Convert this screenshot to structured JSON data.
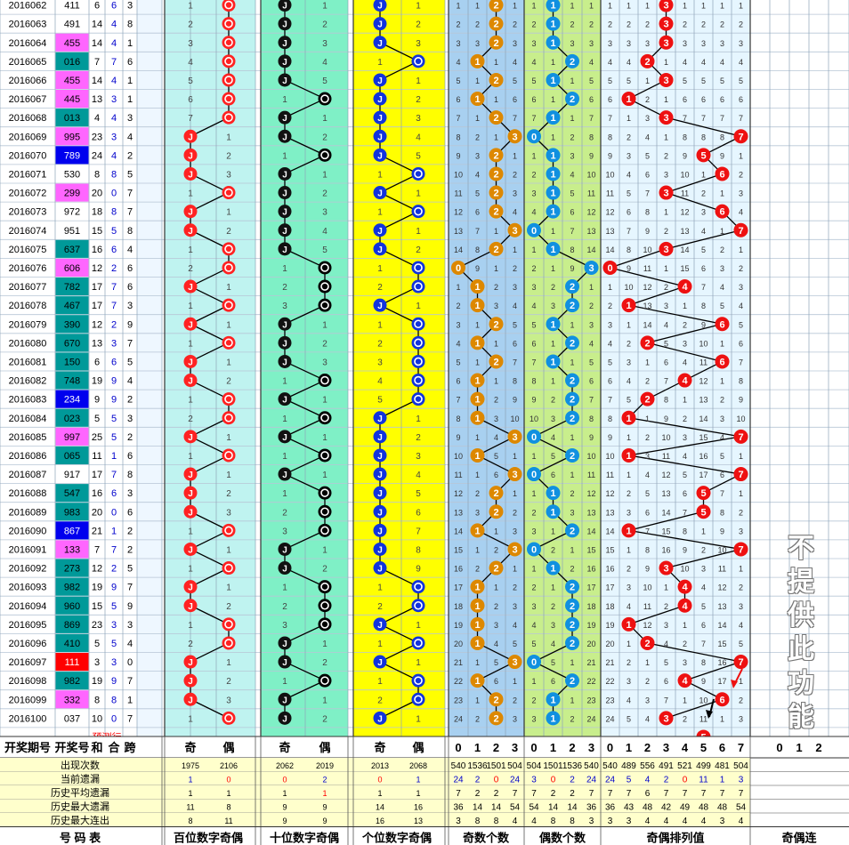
{
  "rows": [
    {
      "p": "2016062",
      "n": "411",
      "s": 6,
      "k": 6,
      "d": 3,
      "bg": "#ffffff"
    },
    {
      "p": "2016063",
      "n": "491",
      "s": 14,
      "k": 4,
      "d": 8,
      "bg": "#ffffff"
    },
    {
      "p": "2016064",
      "n": "455",
      "s": 14,
      "k": 4,
      "d": 1,
      "bg": "#ff66ff"
    },
    {
      "p": "2016065",
      "n": "016",
      "s": 7,
      "k": 7,
      "d": 6,
      "bg": "#009999"
    },
    {
      "p": "2016066",
      "n": "455",
      "s": 14,
      "k": 4,
      "d": 1,
      "bg": "#ff66ff"
    },
    {
      "p": "2016067",
      "n": "445",
      "s": 13,
      "k": 3,
      "d": 1,
      "bg": "#ff66ff"
    },
    {
      "p": "2016068",
      "n": "013",
      "s": 4,
      "k": 4,
      "d": 3,
      "bg": "#009999"
    },
    {
      "p": "2016069",
      "n": "995",
      "s": 23,
      "k": 3,
      "d": 4,
      "bg": "#ff66ff"
    },
    {
      "p": "2016070",
      "n": "789",
      "s": 24,
      "k": 4,
      "d": 2,
      "bg": "#0000ee"
    },
    {
      "p": "2016071",
      "n": "530",
      "s": 8,
      "k": 8,
      "d": 5,
      "bg": "#ffffff"
    },
    {
      "p": "2016072",
      "n": "299",
      "s": 20,
      "k": 0,
      "d": 7,
      "bg": "#ff66ff"
    },
    {
      "p": "2016073",
      "n": "972",
      "s": 18,
      "k": 8,
      "d": 7,
      "bg": "#ffffff"
    },
    {
      "p": "2016074",
      "n": "951",
      "s": 15,
      "k": 5,
      "d": 8,
      "bg": "#ffffff"
    },
    {
      "p": "2016075",
      "n": "637",
      "s": 16,
      "k": 6,
      "d": 4,
      "bg": "#009999"
    },
    {
      "p": "2016076",
      "n": "606",
      "s": 12,
      "k": 2,
      "d": 6,
      "bg": "#ff66ff"
    },
    {
      "p": "2016077",
      "n": "782",
      "s": 17,
      "k": 7,
      "d": 6,
      "bg": "#009999"
    },
    {
      "p": "2016078",
      "n": "467",
      "s": 17,
      "k": 7,
      "d": 3,
      "bg": "#009999"
    },
    {
      "p": "2016079",
      "n": "390",
      "s": 12,
      "k": 2,
      "d": 9,
      "bg": "#009999"
    },
    {
      "p": "2016080",
      "n": "670",
      "s": 13,
      "k": 3,
      "d": 7,
      "bg": "#009999"
    },
    {
      "p": "2016081",
      "n": "150",
      "s": 6,
      "k": 6,
      "d": 5,
      "bg": "#009999"
    },
    {
      "p": "2016082",
      "n": "748",
      "s": 19,
      "k": 9,
      "d": 4,
      "bg": "#009999"
    },
    {
      "p": "2016083",
      "n": "234",
      "s": 9,
      "k": 9,
      "d": 2,
      "bg": "#0000ee"
    },
    {
      "p": "2016084",
      "n": "023",
      "s": 5,
      "k": 5,
      "d": 3,
      "bg": "#009999"
    },
    {
      "p": "2016085",
      "n": "997",
      "s": 25,
      "k": 5,
      "d": 2,
      "bg": "#ff66ff"
    },
    {
      "p": "2016086",
      "n": "065",
      "s": 11,
      "k": 1,
      "d": 6,
      "bg": "#009999"
    },
    {
      "p": "2016087",
      "n": "917",
      "s": 17,
      "k": 7,
      "d": 8,
      "bg": "#ffffff"
    },
    {
      "p": "2016088",
      "n": "547",
      "s": 16,
      "k": 6,
      "d": 3,
      "bg": "#009999"
    },
    {
      "p": "2016089",
      "n": "983",
      "s": 20,
      "k": 0,
      "d": 6,
      "bg": "#009999"
    },
    {
      "p": "2016090",
      "n": "867",
      "s": 21,
      "k": 1,
      "d": 2,
      "bg": "#0000ee"
    },
    {
      "p": "2016091",
      "n": "133",
      "s": 7,
      "k": 7,
      "d": 2,
      "bg": "#ff66ff"
    },
    {
      "p": "2016092",
      "n": "273",
      "s": 12,
      "k": 2,
      "d": 5,
      "bg": "#009999"
    },
    {
      "p": "2016093",
      "n": "982",
      "s": 19,
      "k": 9,
      "d": 7,
      "bg": "#009999"
    },
    {
      "p": "2016094",
      "n": "960",
      "s": 15,
      "k": 5,
      "d": 9,
      "bg": "#009999"
    },
    {
      "p": "2016095",
      "n": "869",
      "s": 23,
      "k": 3,
      "d": 3,
      "bg": "#009999"
    },
    {
      "p": "2016096",
      "n": "410",
      "s": 5,
      "k": 5,
      "d": 4,
      "bg": "#009999"
    },
    {
      "p": "2016097",
      "n": "111",
      "s": 3,
      "k": 3,
      "d": 0,
      "bg": "#ff0000"
    },
    {
      "p": "2016098",
      "n": "982",
      "s": 19,
      "k": 9,
      "d": 7,
      "bg": "#009999"
    },
    {
      "p": "2016099",
      "n": "332",
      "s": 8,
      "k": 8,
      "d": 1,
      "bg": "#ff66ff"
    },
    {
      "p": "2016100",
      "n": "037",
      "s": 10,
      "k": 0,
      "d": 7,
      "bg": "#ffffff"
    }
  ],
  "predict_label": "预测行",
  "header": [
    "开奖期号",
    "开奖号",
    "和",
    "合",
    "跨",
    "奇",
    "偶",
    "奇",
    "偶",
    "奇",
    "偶",
    "0",
    "1",
    "2",
    "3",
    "0",
    "1",
    "2",
    "3",
    "0",
    "1",
    "2",
    "3",
    "4",
    "5",
    "6",
    "7",
    "0",
    "1",
    "2"
  ],
  "stats": [
    {
      "label": "出现次数",
      "v": [
        "1975",
        "2106",
        "2062",
        "2019",
        "2013",
        "2068",
        "540",
        "1536",
        "1501",
        "504",
        "504",
        "1501",
        "1536",
        "540",
        "540",
        "489",
        "556",
        "491",
        "521",
        "499",
        "481",
        "504"
      ]
    },
    {
      "label": "当前遗漏",
      "v": [
        "1",
        "0",
        "0",
        "2",
        "0",
        "1",
        "24",
        "2",
        "0",
        "24",
        "3",
        "0",
        "2",
        "24",
        "24",
        "5",
        "4",
        "2",
        "0",
        "11",
        "1",
        "3"
      ]
    },
    {
      "label": "历史平均遗漏",
      "v": [
        "1",
        "1",
        "1",
        "1",
        "1",
        "1",
        "7",
        "2",
        "2",
        "7",
        "7",
        "2",
        "2",
        "7",
        "7",
        "7",
        "6",
        "7",
        "7",
        "7",
        "7",
        "7"
      ]
    },
    {
      "label": "历史最大遗漏",
      "v": [
        "11",
        "8",
        "9",
        "9",
        "14",
        "16",
        "36",
        "14",
        "14",
        "54",
        "54",
        "14",
        "14",
        "36",
        "36",
        "43",
        "48",
        "42",
        "49",
        "48",
        "48",
        "54"
      ]
    },
    {
      "label": "历史最大连出",
      "v": [
        "8",
        "11",
        "9",
        "9",
        "16",
        "13",
        "3",
        "8",
        "8",
        "4",
        "4",
        "8",
        "8",
        "3",
        "3",
        "3",
        "4",
        "4",
        "4",
        "4",
        "3",
        "4"
      ]
    }
  ],
  "footer": [
    "号 码 表",
    "百位数字奇偶",
    "十位数字奇偶",
    "个位数字奇偶",
    "奇数个数",
    "偶数个数",
    "奇偶排列值",
    "奇偶连"
  ],
  "watermark": "不提供此功能",
  "colors": {
    "odd": "#ff0000",
    "even": "#000000",
    "ten": "#000000",
    "unit": "#0000ff",
    "orange": "#dd8800",
    "blue": "#1090e0",
    "stat": "#ffffcc"
  }
}
